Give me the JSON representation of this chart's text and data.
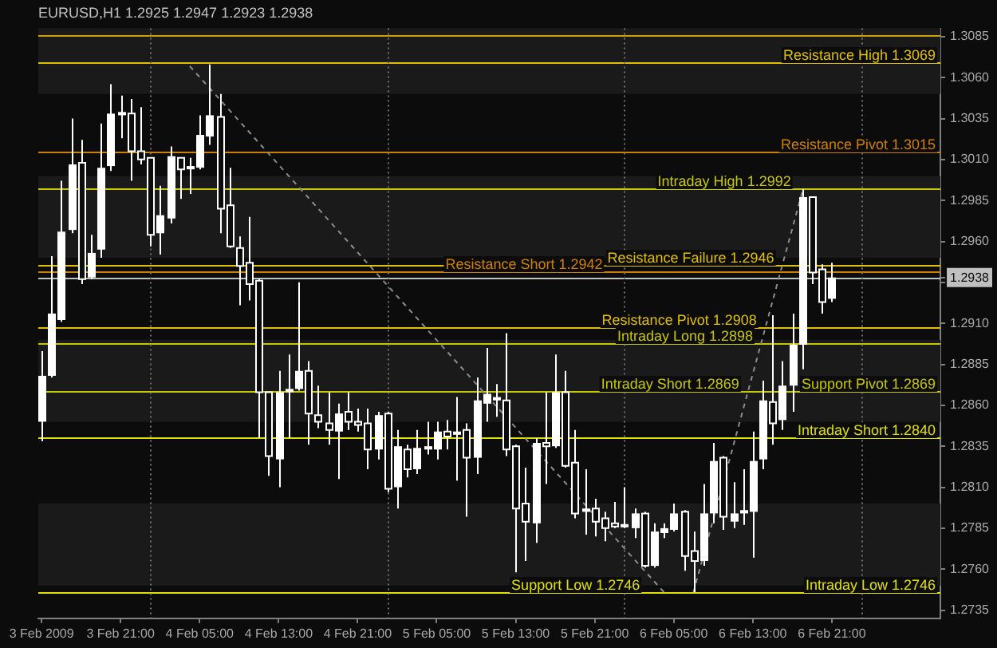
{
  "chart_data": {
    "type": "candlestick",
    "title": "EURUSD,H1 1.2925 1.2947 1.2923 1.2938",
    "color": "#ffffff",
    "x": [
      "2009-02-03T13:00",
      "2009-02-03T14:00",
      "2009-02-03T15:00",
      "2009-02-03T16:00",
      "2009-02-03T17:00",
      "2009-02-03T18:00",
      "2009-02-03T19:00",
      "2009-02-03T20:00",
      "2009-02-03T21:00",
      "2009-02-03T22:00",
      "2009-02-03T23:00",
      "2009-02-04T00:00",
      "2009-02-04T01:00",
      "2009-02-04T02:00",
      "2009-02-04T03:00",
      "2009-02-04T04:00",
      "2009-02-04T05:00",
      "2009-02-04T06:00",
      "2009-02-04T07:00",
      "2009-02-04T08:00",
      "2009-02-04T09:00",
      "2009-02-04T10:00",
      "2009-02-04T11:00",
      "2009-02-04T12:00",
      "2009-02-04T13:00",
      "2009-02-04T14:00",
      "2009-02-04T15:00",
      "2009-02-04T16:00",
      "2009-02-04T17:00",
      "2009-02-04T18:00",
      "2009-02-04T19:00",
      "2009-02-04T20:00",
      "2009-02-04T21:00",
      "2009-02-04T22:00",
      "2009-02-04T23:00",
      "2009-02-05T00:00",
      "2009-02-05T01:00",
      "2009-02-05T02:00",
      "2009-02-05T03:00",
      "2009-02-05T04:00",
      "2009-02-05T05:00",
      "2009-02-05T06:00",
      "2009-02-05T07:00",
      "2009-02-05T08:00",
      "2009-02-05T09:00",
      "2009-02-05T10:00",
      "2009-02-05T11:00",
      "2009-02-05T12:00",
      "2009-02-05T13:00",
      "2009-02-05T14:00",
      "2009-02-05T15:00",
      "2009-02-05T16:00",
      "2009-02-05T17:00",
      "2009-02-05T18:00",
      "2009-02-05T19:00",
      "2009-02-05T20:00",
      "2009-02-05T21:00",
      "2009-02-05T22:00",
      "2009-02-05T23:00",
      "2009-02-06T00:00",
      "2009-02-06T01:00",
      "2009-02-06T02:00",
      "2009-02-06T03:00",
      "2009-02-06T04:00",
      "2009-02-06T05:00",
      "2009-02-06T06:00",
      "2009-02-06T07:00",
      "2009-02-06T08:00",
      "2009-02-06T09:00",
      "2009-02-06T10:00",
      "2009-02-06T11:00",
      "2009-02-06T12:00",
      "2009-02-06T13:00",
      "2009-02-06T14:00",
      "2009-02-06T15:00",
      "2009-02-06T16:00",
      "2009-02-06T17:00",
      "2009-02-06T18:00",
      "2009-02-06T19:00",
      "2009-02-06T20:00",
      "2009-02-06T21:00"
    ],
    "ohlc": [
      [
        1.285,
        1.2893,
        1.2838,
        1.2878
      ],
      [
        1.2878,
        1.2951,
        1.2877,
        1.2916
      ],
      [
        1.2912,
        1.2997,
        1.2911,
        1.2966
      ],
      [
        1.2967,
        1.3035,
        1.2965,
        1.3007
      ],
      [
        1.3008,
        1.3022,
        1.2934,
        1.2937
      ],
      [
        1.2938,
        1.2964,
        1.2937,
        1.2953
      ],
      [
        1.2955,
        1.3032,
        1.295,
        1.3005
      ],
      [
        1.3006,
        1.3056,
        1.3003,
        1.3038
      ],
      [
        1.3037,
        1.3049,
        1.3023,
        1.3039
      ],
      [
        1.3038,
        1.3047,
        1.2997,
        1.3015
      ],
      [
        1.3015,
        1.3042,
        1.3007,
        1.301
      ],
      [
        1.3011,
        1.3011,
        1.2957,
        1.2964
      ],
      [
        1.2965,
        1.2994,
        1.2952,
        1.2976
      ],
      [
        1.2974,
        1.3018,
        1.2971,
        1.3012
      ],
      [
        1.3011,
        1.3011,
        1.2986,
        1.3004
      ],
      [
        1.3004,
        1.3011,
        1.2989,
        1.3006
      ],
      [
        1.3005,
        1.3037,
        1.3004,
        1.3025
      ],
      [
        1.3024,
        1.3068,
        1.3019,
        1.3037
      ],
      [
        1.3036,
        1.305,
        1.2965,
        1.298
      ],
      [
        1.2982,
        1.3005,
        1.2956,
        1.2957
      ],
      [
        1.2956,
        1.2963,
        1.2921,
        1.2945
      ],
      [
        1.2947,
        1.2975,
        1.2924,
        1.2934
      ],
      [
        1.2936,
        1.2937,
        1.284,
        1.2868
      ],
      [
        1.2868,
        1.2868,
        1.2817,
        1.2829
      ],
      [
        1.2827,
        1.2881,
        1.281,
        1.2868
      ],
      [
        1.2868,
        1.2891,
        1.284,
        1.287
      ],
      [
        1.287,
        1.2935,
        1.2869,
        1.2881
      ],
      [
        1.2881,
        1.2887,
        1.2836,
        1.2855
      ],
      [
        1.2854,
        1.2872,
        1.2846,
        1.285
      ],
      [
        1.2849,
        1.2868,
        1.2836,
        1.2845
      ],
      [
        1.2844,
        1.2861,
        1.2815,
        1.2855
      ],
      [
        1.2856,
        1.2868,
        1.2845,
        1.285
      ],
      [
        1.285,
        1.2858,
        1.2844,
        1.2848
      ],
      [
        1.2849,
        1.2858,
        1.2821,
        1.2833
      ],
      [
        1.2833,
        1.2856,
        1.2827,
        1.2854
      ],
      [
        1.2855,
        1.2856,
        1.2807,
        1.2809
      ],
      [
        1.281,
        1.2845,
        1.2797,
        1.2835
      ],
      [
        1.2833,
        1.2836,
        1.2816,
        1.2821
      ],
      [
        1.2821,
        1.2845,
        1.2818,
        1.2834
      ],
      [
        1.2833,
        1.285,
        1.283,
        1.2835
      ],
      [
        1.2833,
        1.285,
        1.2827,
        1.2844
      ],
      [
        1.2844,
        1.2851,
        1.2833,
        1.2841
      ],
      [
        1.2842,
        1.2865,
        1.2814,
        1.2844
      ],
      [
        1.2845,
        1.2849,
        1.2792,
        1.2828
      ],
      [
        1.2828,
        1.2877,
        1.2818,
        1.2863
      ],
      [
        1.2861,
        1.2895,
        1.285,
        1.2867
      ],
      [
        1.2863,
        1.2873,
        1.2853,
        1.2865
      ],
      [
        1.2863,
        1.2904,
        1.2829,
        1.2833
      ],
      [
        1.2835,
        1.2836,
        1.2758,
        1.2797
      ],
      [
        1.28,
        1.2822,
        1.2765,
        1.2789
      ],
      [
        1.2788,
        1.284,
        1.2776,
        1.2837
      ],
      [
        1.2837,
        1.2868,
        1.2812,
        1.2835
      ],
      [
        1.2835,
        1.2891,
        1.2834,
        1.2868
      ],
      [
        1.2868,
        1.2881,
        1.2822,
        1.2823
      ],
      [
        1.2825,
        1.2845,
        1.2791,
        1.2794
      ],
      [
        1.2795,
        1.2821,
        1.2781,
        1.2797
      ],
      [
        1.2797,
        1.2803,
        1.278,
        1.2789
      ],
      [
        1.2791,
        1.2795,
        1.2777,
        1.2785
      ],
      [
        1.2788,
        1.2801,
        1.2785,
        1.2786
      ],
      [
        1.2787,
        1.281,
        1.2785,
        1.2786
      ],
      [
        1.2785,
        1.2797,
        1.2779,
        1.2794
      ],
      [
        1.2794,
        1.2795,
        1.2761,
        1.2762
      ],
      [
        1.2762,
        1.2788,
        1.2761,
        1.2783
      ],
      [
        1.2782,
        1.2788,
        1.2779,
        1.2785
      ],
      [
        1.2784,
        1.28,
        1.2783,
        1.2794
      ],
      [
        1.2795,
        1.2796,
        1.2759,
        1.2768
      ],
      [
        1.2771,
        1.2783,
        1.2746,
        1.2765
      ],
      [
        1.2765,
        1.2812,
        1.2762,
        1.2794
      ],
      [
        1.2794,
        1.2837,
        1.2788,
        1.2826
      ],
      [
        1.2828,
        1.2829,
        1.2784,
        1.2792
      ],
      [
        1.2789,
        1.2813,
        1.2785,
        1.2794
      ],
      [
        1.2794,
        1.2821,
        1.2787,
        1.2796
      ],
      [
        1.2795,
        1.2844,
        1.2767,
        1.2826
      ],
      [
        1.2827,
        1.2875,
        1.2821,
        1.2863
      ],
      [
        1.2862,
        1.2915,
        1.2836,
        1.2849
      ],
      [
        1.2851,
        1.2887,
        1.2845,
        1.2872
      ],
      [
        1.2872,
        1.2916,
        1.2856,
        1.2897
      ],
      [
        1.2897,
        1.2992,
        1.2882,
        1.2987
      ],
      [
        1.2987,
        1.2987,
        1.2934,
        1.2941
      ],
      [
        1.2943,
        1.2946,
        1.2916,
        1.2923
      ],
      [
        1.2925,
        1.2947,
        1.2923,
        1.2938
      ]
    ],
    "series": [
      {
        "type": "line",
        "x": [
          "2009-02-04T04:00",
          "2009-02-06T04:00"
        ],
        "values": [
          1.3067,
          1.2746
        ],
        "color": "#8c8c8c",
        "line_style": "dashed"
      },
      {
        "type": "line",
        "x": [
          "2009-02-06T07:00",
          "2009-02-06T18:00"
        ],
        "values": [
          1.2746,
          1.299
        ],
        "color": "#8c8c8c",
        "line_style": "dashed"
      }
    ],
    "xlim": [
      "2009-02-03T12:40",
      "2009-02-07T08:00"
    ],
    "xticks": [
      {
        "value": "2009-02-03T13:00",
        "label": "3 Feb 2009"
      },
      {
        "value": "2009-02-03T21:00",
        "label": "3 Feb 21:00"
      },
      {
        "value": "2009-02-04T05:00",
        "label": "4 Feb 05:00"
      },
      {
        "value": "2009-02-04T13:00",
        "label": "4 Feb 13:00"
      },
      {
        "value": "2009-02-04T21:00",
        "label": "4 Feb 21:00"
      },
      {
        "value": "2009-02-05T05:00",
        "label": "5 Feb 05:00"
      },
      {
        "value": "2009-02-05T13:00",
        "label": "5 Feb 13:00"
      },
      {
        "value": "2009-02-05T21:00",
        "label": "5 Feb 21:00"
      },
      {
        "value": "2009-02-06T05:00",
        "label": "6 Feb 05:00"
      },
      {
        "value": "2009-02-06T13:00",
        "label": "6 Feb 13:00"
      },
      {
        "value": "2009-02-06T21:00",
        "label": "6 Feb 21:00"
      }
    ],
    "ylim": [
      1.273,
      1.309
    ],
    "yticks": [
      1.2735,
      {
        "value": 1.276,
        "label": "1.2760"
      },
      1.2785,
      {
        "value": 1.281,
        "label": "1.2810"
      },
      1.2835,
      {
        "value": 1.286,
        "label": "1.2860"
      },
      1.2885,
      {
        "value": 1.291,
        "label": "1.2910"
      },
      {
        "value": 1.2935,
        "label": null
      },
      {
        "value": 1.2938,
        "label": "1.2938"
      },
      {
        "value": 1.296,
        "label": "1.2960"
      },
      1.2985,
      {
        "value": 1.301,
        "label": "1.3010"
      },
      1.3035,
      {
        "value": 1.306,
        "label": "1.3060"
      },
      1.3085
    ],
    "bands": [
      {
        "axis": "y",
        "from": 1.275,
        "to": 1.28,
        "color": "#1a1a1a"
      },
      {
        "axis": "y",
        "from": 1.285,
        "to": 1.29,
        "color": "#1a1a1a"
      },
      {
        "axis": "y",
        "from": 1.295,
        "to": 1.3,
        "color": "#1a1a1a"
      },
      {
        "axis": "y",
        "from": 1.305,
        "to": 1.309,
        "color": "#1a1a1a"
      }
    ],
    "ref_lines": [
      {
        "axis": "y",
        "value": 1.3086,
        "color": "#c8a000"
      },
      {
        "axis": "y",
        "value": 1.3069,
        "label": "Resistance High 1.3069",
        "color": "#e0c000"
      },
      {
        "axis": "y",
        "value": 1.3015,
        "label": "Resistance Pivot 1.3015",
        "color": "#d08000"
      },
      {
        "axis": "y",
        "value": 1.2992,
        "label": "Intraday High 1.2992",
        "color": "#c8c800"
      },
      {
        "axis": "y",
        "value": 1.2946,
        "label": "Resistance Failure 1.2946",
        "color": "#e0c000"
      },
      {
        "axis": "y",
        "value": 1.2942,
        "label": "Resistance Short 1.2942",
        "color": "#d08000"
      },
      {
        "axis": "y",
        "value": 1.2938,
        "color": "#c0c0c0"
      },
      {
        "axis": "y",
        "value": 1.2908,
        "label": "Resistance Pivot 1.2908",
        "color": "#e0c000"
      },
      {
        "axis": "y",
        "value": 1.2898,
        "label": "Intraday Long 1.2898",
        "color": "#c8c800"
      },
      {
        "axis": "y",
        "value": 1.2869,
        "label": "Intraday Short 1.2869",
        "color": "#c8c800"
      },
      {
        "axis": "y",
        "value": 1.284,
        "label": "Intraday Short 1.2840",
        "color": "#e0e000"
      },
      {
        "axis": "y",
        "value": 1.2746,
        "label": "Intraday Low 1.2746",
        "color": "#e0e000"
      },
      {
        "axis": "x",
        "value": "2009-02-04T00:00",
        "color": "#707070",
        "line_style": "dotted"
      },
      {
        "axis": "x",
        "value": "2009-02-05T00:00",
        "color": "#707070",
        "line_style": "dotted"
      },
      {
        "axis": "x",
        "value": "2009-02-06T00:00",
        "color": "#707070",
        "line_style": "dotted"
      },
      {
        "axis": "x",
        "value": "2009-02-07T00:00",
        "color": "#707070",
        "line_style": "dotted"
      }
    ],
    "annotations": [
      {
        "text": "Support Pivot 1.2869",
        "y": 1.2869
      },
      {
        "text": "Support Low 1.2746",
        "y": 1.2746
      }
    ]
  }
}
